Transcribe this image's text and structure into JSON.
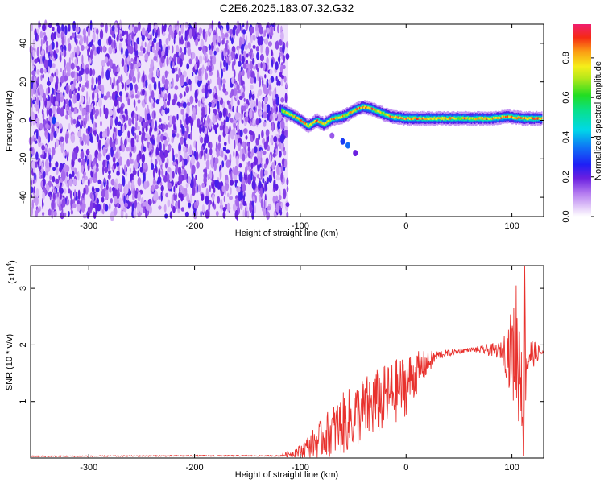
{
  "title": "C2E6.2025.183.07.32.G32",
  "chart_data": [
    {
      "type": "heatmap",
      "xlabel": "Height of straight line (km)",
      "ylabel": "Frequency (Hz)",
      "xlim": [
        -355,
        130
      ],
      "ylim": [
        -50,
        50
      ],
      "x_ticks": [
        "-300",
        "-200",
        "-100",
        "0",
        "100"
      ],
      "y_ticks": [
        "-40",
        "-20",
        "0",
        "20",
        "40"
      ],
      "colorbar": {
        "label": "Normalized spectral amplitude",
        "range": [
          0,
          0.97
        ],
        "ticks": [
          "0.0",
          "0.2",
          "0.4",
          "0.6",
          "0.8"
        ]
      },
      "noise_region_x": [
        -355,
        -112
      ],
      "noise_level": 0.2,
      "ridge": [
        {
          "x": -118,
          "y": 5,
          "v": 0.7
        },
        {
          "x": -110,
          "y": 3,
          "v": 0.75
        },
        {
          "x": -100,
          "y": 0,
          "v": 0.85
        },
        {
          "x": -93,
          "y": -3,
          "v": 0.8
        },
        {
          "x": -85,
          "y": 0,
          "v": 0.8
        },
        {
          "x": -78,
          "y": -2,
          "v": 0.75
        },
        {
          "x": -70,
          "y": 1,
          "v": 0.8
        },
        {
          "x": -60,
          "y": 2,
          "v": 0.75
        },
        {
          "x": -50,
          "y": 5,
          "v": 0.8
        },
        {
          "x": -42,
          "y": 7,
          "v": 0.85
        },
        {
          "x": -33,
          "y": 6,
          "v": 0.8
        },
        {
          "x": -25,
          "y": 4,
          "v": 0.75
        },
        {
          "x": -15,
          "y": 2,
          "v": 0.8
        },
        {
          "x": 0,
          "y": 1,
          "v": 0.85
        },
        {
          "x": 20,
          "y": 1,
          "v": 0.8
        },
        {
          "x": 40,
          "y": 1,
          "v": 0.75
        },
        {
          "x": 60,
          "y": 1,
          "v": 0.75
        },
        {
          "x": 80,
          "y": 1,
          "v": 0.8
        },
        {
          "x": 95,
          "y": 2,
          "v": 0.85
        },
        {
          "x": 110,
          "y": 1,
          "v": 0.85
        },
        {
          "x": 128,
          "y": 1,
          "v": 0.85
        }
      ],
      "side_branch": [
        {
          "x": -70,
          "y": -8,
          "v": 0.15
        },
        {
          "x": -60,
          "y": -11,
          "v": 0.3
        },
        {
          "x": -55,
          "y": -13,
          "v": 0.35
        },
        {
          "x": -48,
          "y": -17,
          "v": 0.2
        }
      ]
    },
    {
      "type": "line",
      "xlabel": "Height of straight line (km)",
      "ylabel": "SNR (10 * v/v)",
      "y_multiplier": "(x10",
      "y_multiplier_exp": "4",
      "y_multiplier_close": ")",
      "xlim": [
        -355,
        130
      ],
      "ylim": [
        0,
        3.4
      ],
      "x_ticks": [
        "-300",
        "-200",
        "-100",
        "0",
        "100"
      ],
      "y_ticks": [
        "1",
        "2",
        "3"
      ],
      "color": "#e8312d",
      "series": [
        {
          "values_envelope": [
            {
              "x": -355,
              "mean": 0.03,
              "spread": 0.01
            },
            {
              "x": -200,
              "mean": 0.04,
              "spread": 0.01
            },
            {
              "x": -120,
              "mean": 0.04,
              "spread": 0.01
            },
            {
              "x": -100,
              "mean": 0.12,
              "spread": 0.12
            },
            {
              "x": -80,
              "mean": 0.35,
              "spread": 0.35
            },
            {
              "x": -60,
              "mean": 0.6,
              "spread": 0.55
            },
            {
              "x": -40,
              "mean": 0.85,
              "spread": 0.6
            },
            {
              "x": -20,
              "mean": 1.05,
              "spread": 0.6
            },
            {
              "x": 0,
              "mean": 1.3,
              "spread": 0.55
            },
            {
              "x": 15,
              "mean": 1.6,
              "spread": 0.3
            },
            {
              "x": 30,
              "mean": 1.82,
              "spread": 0.08
            },
            {
              "x": 60,
              "mean": 1.92,
              "spread": 0.03
            },
            {
              "x": 90,
              "mean": 1.9,
              "spread": 0.15
            },
            {
              "x": 100,
              "mean": 1.85,
              "spread": 0.8
            },
            {
              "x": 110,
              "mean": 1.7,
              "spread": 1.4
            },
            {
              "x": 118,
              "mean": 1.85,
              "spread": 0.3
            },
            {
              "x": 130,
              "mean": 1.87,
              "spread": 0.03
            }
          ],
          "peaks": [
            {
              "x": 104,
              "y": 3.05
            },
            {
              "x": 112,
              "y": 3.4
            },
            {
              "x": 111,
              "y": 0.05
            }
          ]
        }
      ]
    }
  ]
}
